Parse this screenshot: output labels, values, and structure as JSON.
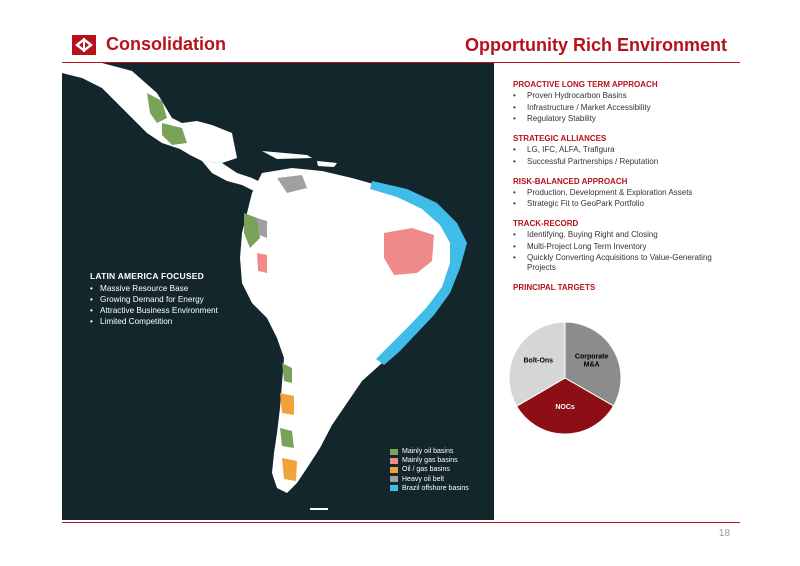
{
  "header": {
    "left_title": "Consolidation",
    "right_title": "Opportunity Rich Environment",
    "logo_icon": "geopark-logo-icon"
  },
  "map": {
    "focus_title": "LATIN AMERICA FOCUSED",
    "focus_items": [
      "Massive Resource Base",
      "Growing Demand for Energy",
      "Attractive Business Environment",
      "Limited Competition"
    ],
    "legend": [
      {
        "label": "Mainly oil basins",
        "color": "#7aa35a"
      },
      {
        "label": "Mainly gas basins",
        "color": "#f08a8a"
      },
      {
        "label": "Oil / gas basins",
        "color": "#f2a23a"
      },
      {
        "label": "Heavy oil belt",
        "color": "#a0a0a0"
      },
      {
        "label": "Brazil offshore basins",
        "color": "#3fbde8"
      }
    ]
  },
  "sections": [
    {
      "title": "PROACTIVE LONG TERM APPROACH",
      "items": [
        "Proven Hydrocarbon Basins",
        "Infrastructure / Market Accessibility",
        "Regulatory Stability"
      ]
    },
    {
      "title": "STRATEGIC ALLIANCES",
      "items": [
        "LG, IFC, ALFA, Trafigura",
        "Successful Partnerships / Reputation"
      ]
    },
    {
      "title": "RISK-BALANCED APPROACH",
      "items": [
        "Production, Development & Exploration Assets",
        "Strategic Fit to GeoPark Portfolio"
      ]
    },
    {
      "title": "TRACK-RECORD",
      "items": [
        "Identifying, Buying Right and Closing",
        "Multi-Project Long Term Inventory",
        "Quickly Converting Acquisitions to Value-Generating Projects"
      ]
    }
  ],
  "targets_title": "PRINCIPAL TARGETS",
  "pie": {
    "slices": [
      {
        "label": "Corporate M&A",
        "value": 33.3,
        "color": "#8c8c8c"
      },
      {
        "label": "NOCs",
        "value": 33.3,
        "color": "#8b0f14"
      },
      {
        "label": "Bolt-Ons",
        "value": 33.4,
        "color": "#d6d6d6"
      }
    ]
  },
  "page_number": "18"
}
